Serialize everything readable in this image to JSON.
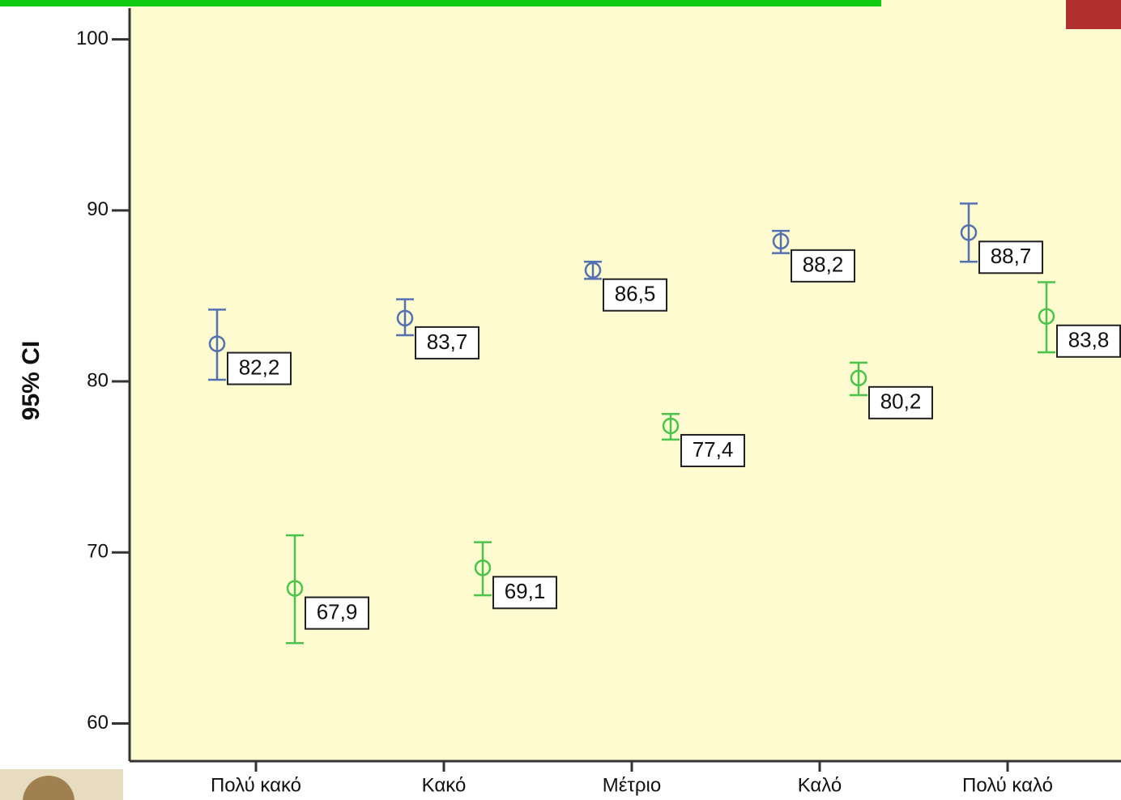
{
  "chart_data": {
    "type": "errorbar",
    "y_label": "95% CI",
    "categories": [
      "Πολύ κακό",
      "Κακό",
      "Μέτριο",
      "Καλό",
      "Πολύ καλό"
    ],
    "series": [
      {
        "color": "#5470b0",
        "values": [
          82.2,
          83.7,
          86.5,
          88.2,
          88.7
        ],
        "value_labels": [
          "82,2",
          "83,7",
          "86,5",
          "88,2",
          "88,7"
        ],
        "low": [
          80.1,
          82.7,
          86.0,
          87.5,
          87.0
        ],
        "high": [
          84.2,
          84.8,
          87.0,
          88.8,
          90.4
        ]
      },
      {
        "color": "#4cc34c",
        "values": [
          67.9,
          69.1,
          77.4,
          80.2,
          83.8
        ],
        "value_labels": [
          "67,9",
          "69,1",
          "77,4",
          "80,2",
          "83,8"
        ],
        "low": [
          64.7,
          67.5,
          76.6,
          79.2,
          81.7
        ],
        "high": [
          71.0,
          70.6,
          78.1,
          81.1,
          85.8
        ]
      }
    ],
    "ylim": [
      57.8,
      102.3
    ],
    "yticks": [
      60,
      70,
      80,
      90,
      100
    ]
  }
}
